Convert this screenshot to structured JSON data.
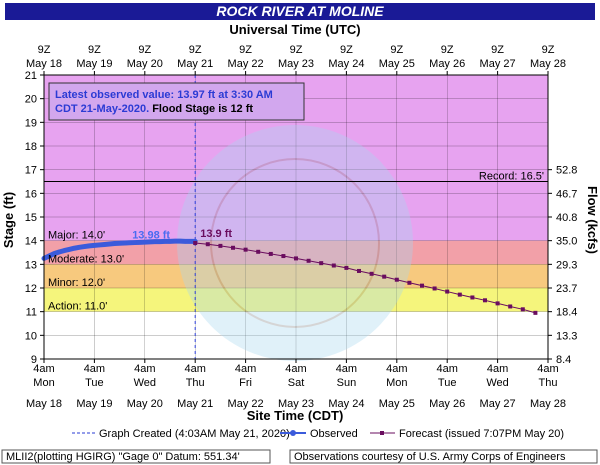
{
  "title": "ROCK RIVER AT MOLINE",
  "colors": {
    "title_bg": "#1a1a96",
    "plot_bg": "#e7a3f0",
    "major": "#f2a0a8",
    "moderate": "#f7c97e",
    "minor": "#f5f57c",
    "action": "#ffffff",
    "below": "#ffffff",
    "observed": "#3b5bdb",
    "forecast": "#6a0d5f",
    "now_line": "#2a3bd6",
    "info_box_bg": "#d2a7ee",
    "info_text": "#2b3bd4"
  },
  "top_axis": {
    "title": "Universal Time (UTC)",
    "hours": [
      "9Z",
      "9Z",
      "9Z",
      "9Z",
      "9Z",
      "9Z",
      "9Z",
      "9Z",
      "9Z",
      "9Z",
      "9Z"
    ],
    "dates": [
      "May 18",
      "May 19",
      "May 20",
      "May 21",
      "May 22",
      "May 23",
      "May 24",
      "May 25",
      "May 26",
      "May 27",
      "May 28"
    ]
  },
  "bottom_axis": {
    "title": "Site Time (CDT)",
    "times": [
      "4am",
      "4am",
      "4am",
      "4am",
      "4am",
      "4am",
      "4am",
      "4am",
      "4am",
      "4am",
      "4am"
    ],
    "days": [
      "Mon",
      "Tue",
      "Wed",
      "Thu",
      "Fri",
      "Sat",
      "Sun",
      "Mon",
      "Tue",
      "Wed",
      "Thu"
    ],
    "dates": [
      "May 18",
      "May 19",
      "May 20",
      "May 21",
      "May 22",
      "May 23",
      "May 24",
      "May 25",
      "May 26",
      "May 27",
      "May 28"
    ]
  },
  "left_axis": {
    "title": "Stage (ft)",
    "ticks": [
      "9",
      "10",
      "11",
      "12",
      "13",
      "14",
      "15",
      "16",
      "17",
      "18",
      "19",
      "20",
      "21"
    ]
  },
  "right_axis": {
    "title": "Flow (kcfs)",
    "ticks": [
      {
        "stage": 9,
        "label": "8.4"
      },
      {
        "stage": 10,
        "label": "13.3"
      },
      {
        "stage": 11,
        "label": "18.4"
      },
      {
        "stage": 12,
        "label": "23.7"
      },
      {
        "stage": 13,
        "label": "29.3"
      },
      {
        "stage": 14,
        "label": "35.0"
      },
      {
        "stage": 15,
        "label": "40.8"
      },
      {
        "stage": 16,
        "label": "46.7"
      },
      {
        "stage": 17,
        "label": "52.8"
      }
    ]
  },
  "info_box": {
    "line1": "Latest observed value: 13.97 ft at 3:30 AM",
    "line2_blue": "CDT 21-May-2020.",
    "line2_black": " Flood Stage is 12 ft"
  },
  "zones": [
    {
      "label": "Major: 14.0'",
      "from": 14,
      "to": 21,
      "color_key": "plot_bg"
    },
    {
      "label": "Moderate: 13.0'",
      "from": 13,
      "to": 14,
      "color_key": "major"
    },
    {
      "label": "Minor: 12.0'",
      "from": 12,
      "to": 13,
      "color_key": "moderate"
    },
    {
      "label": "Action: 11.0'",
      "from": 11,
      "to": 12,
      "color_key": "minor"
    },
    {
      "label": "",
      "from": 9,
      "to": 11,
      "color_key": "below"
    }
  ],
  "record_label": "Record: 16.5'",
  "record_stage": 16.5,
  "peak_observed_label": "13.98 ft",
  "peak_forecast_label": "13.9 ft",
  "legend": {
    "created": "Graph Created (4:03AM May 21, 2020)",
    "observed": "Observed",
    "forecast": "Forecast (issued 7:07PM May 20)"
  },
  "footer": {
    "left": "MLII2(plotting HGIRG) \"Gage 0\" Datum: 551.34'",
    "right": "Observations courtesy of U.S. Army Corps of Engineers"
  },
  "chart_data": {
    "type": "line",
    "title": "ROCK RIVER AT MOLINE",
    "xlabel": "Site Time (CDT)",
    "ylabel": "Stage (ft)",
    "y2label": "Flow (kcfs)",
    "ylim": [
      9,
      21
    ],
    "x_unit": "days since 4am CDT May 18",
    "xlim": [
      0,
      10
    ],
    "now_x": 3.0,
    "series": [
      {
        "name": "Observed",
        "x": [
          0.0,
          0.1,
          0.2,
          0.3,
          0.4,
          0.5,
          0.6,
          0.7,
          0.8,
          0.9,
          1.0,
          1.1,
          1.2,
          1.3,
          1.4,
          1.5,
          1.6,
          1.7,
          1.8,
          1.9,
          2.0,
          2.1,
          2.2,
          2.3,
          2.4,
          2.5,
          2.6,
          2.7,
          2.8,
          2.9,
          3.0
        ],
        "values": [
          13.25,
          13.35,
          13.45,
          13.52,
          13.58,
          13.63,
          13.68,
          13.72,
          13.75,
          13.78,
          13.8,
          13.82,
          13.84,
          13.86,
          13.88,
          13.89,
          13.9,
          13.91,
          13.92,
          13.93,
          13.94,
          13.95,
          13.96,
          13.96,
          13.97,
          13.97,
          13.98,
          13.98,
          13.97,
          13.97,
          13.97
        ]
      },
      {
        "name": "Forecast",
        "x": [
          3.0,
          3.25,
          3.5,
          3.75,
          4.0,
          4.25,
          4.5,
          4.75,
          5.0,
          5.25,
          5.5,
          5.75,
          6.0,
          6.25,
          6.5,
          6.75,
          7.0,
          7.25,
          7.5,
          7.75,
          8.0,
          8.25,
          8.5,
          8.75,
          9.0,
          9.25,
          9.5,
          9.75
        ],
        "values": [
          13.9,
          13.85,
          13.78,
          13.7,
          13.62,
          13.53,
          13.44,
          13.35,
          13.25,
          13.15,
          13.05,
          12.95,
          12.85,
          12.72,
          12.6,
          12.48,
          12.35,
          12.22,
          12.1,
          11.98,
          11.85,
          11.72,
          11.6,
          11.48,
          11.35,
          11.22,
          11.1,
          10.95
        ]
      }
    ],
    "thresholds": {
      "action": 11.0,
      "minor": 12.0,
      "moderate": 13.0,
      "major": 14.0,
      "record": 16.5
    }
  }
}
